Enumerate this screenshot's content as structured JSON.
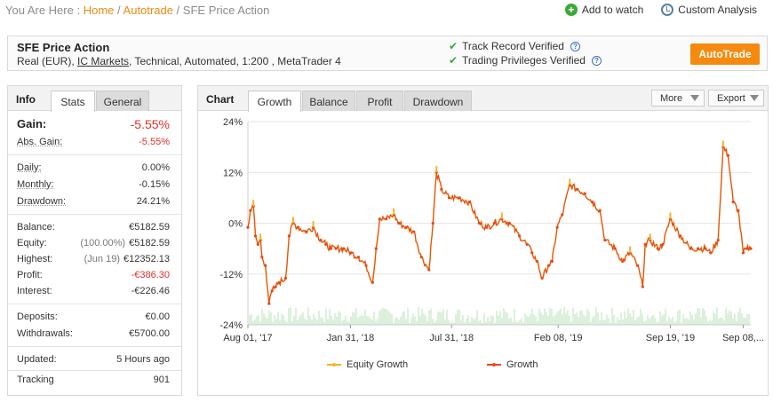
{
  "breadcrumb": {
    "prefix": "You Are Here :",
    "home": "Home",
    "sep1": "/",
    "autotrade": "Autotrade",
    "sep2": "/",
    "current": "SFE Price Action"
  },
  "top_actions": {
    "watch": "Add to watch",
    "analysis": "Custom Analysis"
  },
  "system": {
    "name": "SFE Price Action",
    "meta_prefix": "Real (EUR),",
    "broker": "IC Markets",
    "meta_suffix": ", Technical, Automated, 1:200 , MetaTrader 4",
    "verif1": "Track Record Verified",
    "verif2": "Trading Privileges Verified",
    "qmark": "?",
    "autotrade_label": "AutoTrade"
  },
  "info": {
    "title": "Info",
    "tabs": [
      "Stats",
      "General"
    ],
    "gain_label": "Gain:",
    "gain_value": "-5.55%",
    "abs_gain_label": "Abs. Gain:",
    "abs_gain_value": "-5.55%",
    "daily_label": "Daily:",
    "daily_value": "0.00%",
    "monthly_label": "Monthly:",
    "monthly_value": "-0.15%",
    "drawdown_label": "Drawdown:",
    "drawdown_value": "24.21%",
    "balance_label": "Balance:",
    "balance_value": "€5182.59",
    "equity_label": "Equity:",
    "equity_sub": "(100.00%)",
    "equity_value": "€5182.59",
    "highest_label": "Highest:",
    "highest_sub": "(Jun 19)",
    "highest_value": "€12352.13",
    "profit_label": "Profit:",
    "profit_value": "-€386.30",
    "interest_label": "Interest:",
    "interest_value": "-€226.46",
    "deposits_label": "Deposits:",
    "deposits_value": "€0.00",
    "withdrawals_label": "Withdrawals:",
    "withdrawals_value": "€5700.00",
    "updated_label": "Updated:",
    "updated_value": "5 Hours ago",
    "tracking_label": "Tracking",
    "tracking_value": "901"
  },
  "chart_panel": {
    "title": "Chart",
    "tabs": [
      "Growth",
      "Balance",
      "Profit",
      "Drawdown"
    ],
    "more_label": "More",
    "export_label": "Export"
  },
  "colors": {
    "accent": "#f58a0f",
    "growth": "#e64a1e",
    "equity": "#f5b325",
    "volume": "#9bd49b",
    "negative": "#e0312a"
  },
  "chart_data": {
    "type": "line",
    "title": "",
    "xlabel": "",
    "ylabel": "",
    "ylim": [
      -24,
      24
    ],
    "y_ticks": [
      "24%",
      "12%",
      "0%",
      "-12%",
      "-24%"
    ],
    "y_tick_values": [
      24,
      12,
      0,
      -12,
      -24
    ],
    "x_ticks": [
      "Aug 01, '17",
      "Jan 31, '18",
      "Jul 31, '18",
      "Feb 08, '19",
      "Sep 19, '19",
      "Sep 08,..."
    ],
    "x_tick_positions": [
      0,
      0.204,
      0.405,
      0.617,
      0.84,
      0.985
    ],
    "x_range": [
      0,
      1
    ],
    "grid": true,
    "legend_position": "bottom",
    "series": [
      {
        "name": "Growth",
        "points": [
          [
            0.0,
            -1
          ],
          [
            0.005,
            3
          ],
          [
            0.011,
            4
          ],
          [
            0.015,
            -3
          ],
          [
            0.02,
            -5
          ],
          [
            0.025,
            -4
          ],
          [
            0.028,
            -8
          ],
          [
            0.035,
            -10
          ],
          [
            0.042,
            -19
          ],
          [
            0.048,
            -16
          ],
          [
            0.055,
            -15
          ],
          [
            0.062,
            -14
          ],
          [
            0.075,
            -13
          ],
          [
            0.082,
            -3
          ],
          [
            0.09,
            0
          ],
          [
            0.1,
            -1
          ],
          [
            0.115,
            -2
          ],
          [
            0.13,
            -1
          ],
          [
            0.145,
            -4
          ],
          [
            0.155,
            -5
          ],
          [
            0.165,
            -6
          ],
          [
            0.175,
            -6
          ],
          [
            0.19,
            -6
          ],
          [
            0.205,
            -7
          ],
          [
            0.22,
            -8
          ],
          [
            0.235,
            -10
          ],
          [
            0.248,
            -14
          ],
          [
            0.255,
            -6
          ],
          [
            0.262,
            1
          ],
          [
            0.275,
            1
          ],
          [
            0.29,
            2
          ],
          [
            0.3,
            0
          ],
          [
            0.315,
            -1
          ],
          [
            0.33,
            -2
          ],
          [
            0.345,
            -8
          ],
          [
            0.36,
            -11
          ],
          [
            0.368,
            0
          ],
          [
            0.375,
            12
          ],
          [
            0.385,
            8
          ],
          [
            0.4,
            6
          ],
          [
            0.42,
            6
          ],
          [
            0.44,
            5
          ],
          [
            0.46,
            0
          ],
          [
            0.475,
            -1
          ],
          [
            0.49,
            0
          ],
          [
            0.505,
            1
          ],
          [
            0.52,
            0
          ],
          [
            0.54,
            -3
          ],
          [
            0.555,
            -5
          ],
          [
            0.565,
            -7
          ],
          [
            0.575,
            -9
          ],
          [
            0.585,
            -13
          ],
          [
            0.598,
            -10
          ],
          [
            0.605,
            -9
          ],
          [
            0.615,
            -1
          ],
          [
            0.625,
            2
          ],
          [
            0.64,
            9
          ],
          [
            0.655,
            8
          ],
          [
            0.67,
            7
          ],
          [
            0.685,
            5
          ],
          [
            0.7,
            3
          ],
          [
            0.71,
            -4
          ],
          [
            0.73,
            -6
          ],
          [
            0.745,
            -9
          ],
          [
            0.76,
            -7
          ],
          [
            0.775,
            -10
          ],
          [
            0.785,
            -15
          ],
          [
            0.79,
            -5
          ],
          [
            0.8,
            -4
          ],
          [
            0.815,
            -6
          ],
          [
            0.825,
            -5
          ],
          [
            0.84,
            1
          ],
          [
            0.86,
            -3
          ],
          [
            0.88,
            -6
          ],
          [
            0.895,
            -6
          ],
          [
            0.91,
            -6
          ],
          [
            0.92,
            -7
          ],
          [
            0.935,
            -4
          ],
          [
            0.945,
            18
          ],
          [
            0.955,
            16
          ],
          [
            0.965,
            5
          ],
          [
            0.975,
            3
          ],
          [
            0.985,
            -7
          ],
          [
            0.992,
            -6
          ],
          [
            1.0,
            -6
          ]
        ]
      },
      {
        "name": "Equity Growth",
        "points": []
      }
    ]
  }
}
